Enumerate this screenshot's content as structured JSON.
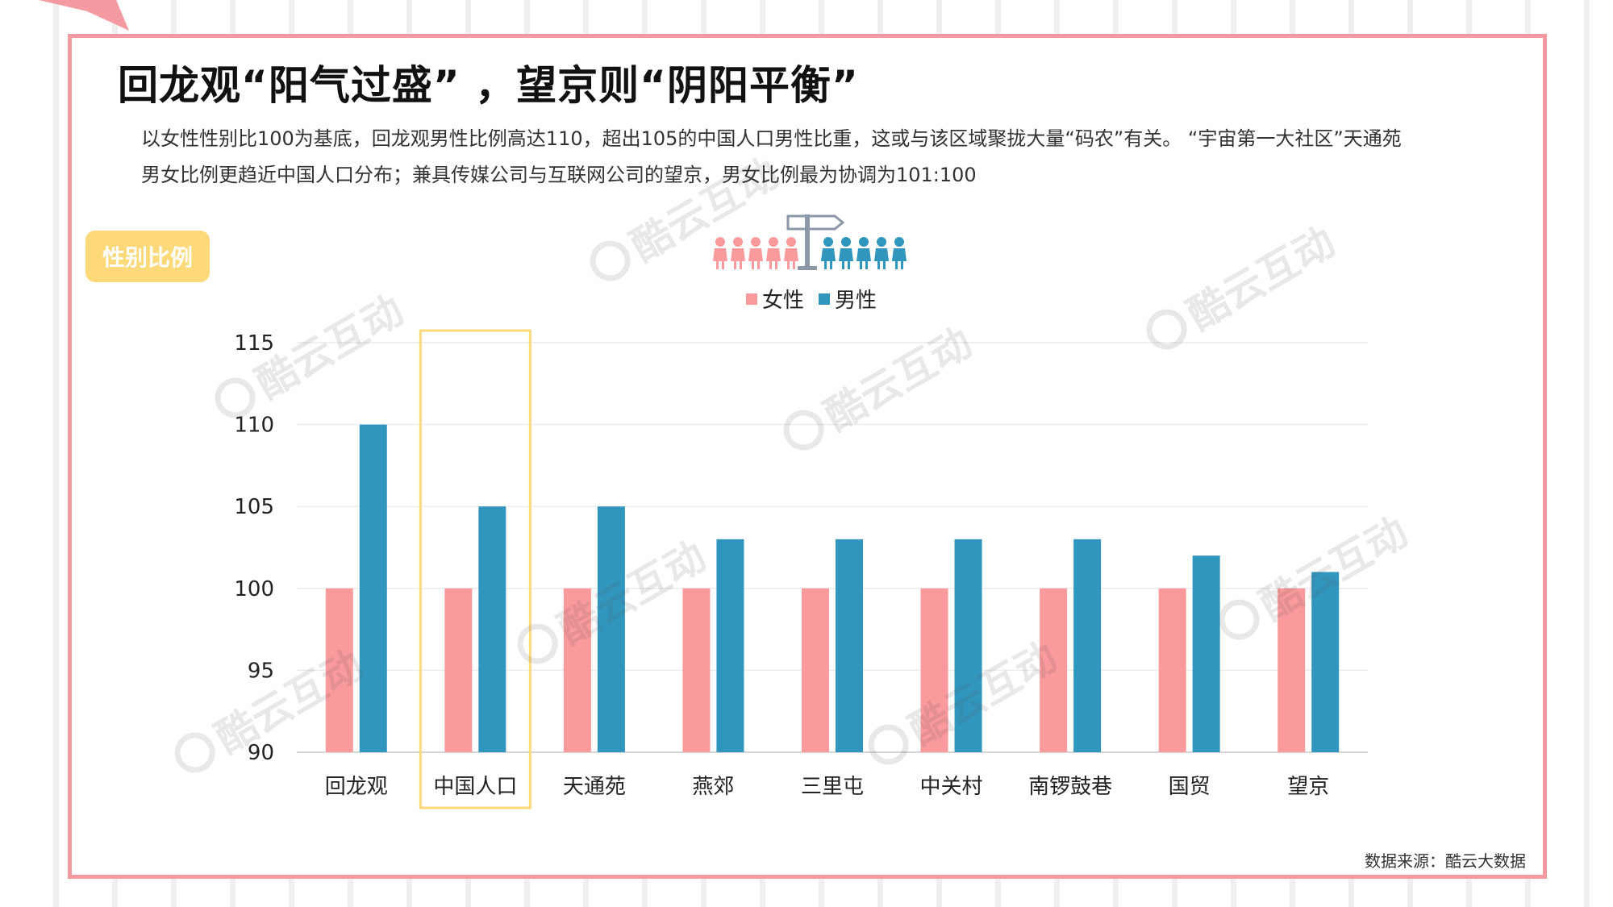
{
  "title": "回龙观“阳气过盛” ，望京则“阴阳平衡”",
  "description": {
    "line1": "以女性性别比100为基底，回龙观男性比例高达110，超出105的中国人口男性比重，这或与该区域聚拢大量“码农”有关。 “宇宙第一大社区”天通苑",
    "line2": "男女比例更趋近中国人口分布；兼具传媒公司与互联网公司的望京，男女比例最为协调为101:100"
  },
  "badge": "性别比例",
  "watermark": "酷云互动",
  "source": "数据来源：酷云大数据",
  "icon": "people-signpost-icon",
  "colors": {
    "female": "#fb9a9c",
    "male": "#3196bd",
    "highlight": "#fdd97a",
    "frame": "#f59aa0"
  },
  "chart_data": {
    "type": "bar",
    "categories": [
      "回龙观",
      "中国人口",
      "天通苑",
      "燕郊",
      "三里屯",
      "中关村",
      "南锣鼓巷",
      "国贸",
      "望京"
    ],
    "series": [
      {
        "name": "女性",
        "values": [
          100,
          100,
          100,
          100,
          100,
          100,
          100,
          100,
          100
        ]
      },
      {
        "name": "男性",
        "values": [
          110,
          105,
          105,
          103,
          103,
          103,
          103,
          102,
          101
        ]
      }
    ],
    "y_ticks": [
      "90",
      "95",
      "100",
      "105",
      "110",
      "115"
    ],
    "ylim": [
      90,
      115
    ],
    "grid": true,
    "legend_position": "top-center",
    "highlighted_category": "中国人口"
  }
}
